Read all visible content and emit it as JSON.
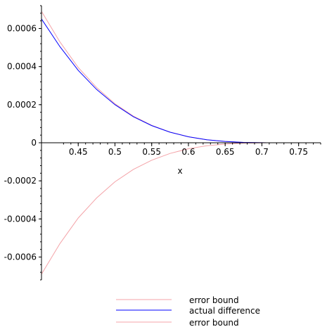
{
  "chart_data": {
    "type": "line",
    "xlabel": "x",
    "ylabel": "",
    "xlim": [
      0.4,
      0.78
    ],
    "ylim": [
      -0.00072,
      0.00072
    ],
    "x_ticks": [
      0.45,
      0.5,
      0.55,
      0.6,
      0.65,
      0.7,
      0.75
    ],
    "x_tick_labels": [
      "0.45",
      "0.5",
      "0.55",
      "0.6",
      "0.65",
      "0.7",
      "0.75"
    ],
    "y_ticks": [
      -0.0006,
      -0.0004,
      -0.0002,
      0,
      0.0002,
      0.0004,
      0.0006
    ],
    "y_tick_labels": [
      "-0.0006",
      "-0.0004",
      "-0.0002",
      "0",
      "0.0002",
      "0.0004",
      "0.0006"
    ],
    "grid": false,
    "legend_position": "bottom",
    "series": [
      {
        "name": "error bound",
        "color": "#f4a3a8",
        "x": [
          0.4,
          0.425,
          0.45,
          0.475,
          0.5,
          0.525,
          0.55,
          0.575,
          0.6,
          0.625,
          0.65,
          0.675,
          0.7,
          0.7071
        ],
        "y": [
          0.00069,
          0.00053,
          0.000395,
          0.00029,
          0.000205,
          0.00014,
          9.15e-05,
          5.6e-05,
          3.15e-05,
          1.58e-05,
          6.8e-06,
          2e-06,
          3e-07,
          0
        ]
      },
      {
        "name": "actual difference",
        "color": "#0000ff",
        "x": [
          0.4,
          0.425,
          0.45,
          0.475,
          0.5,
          0.525,
          0.55,
          0.575,
          0.6,
          0.625,
          0.65,
          0.675,
          0.7,
          0.7071
        ],
        "y": [
          0.00065,
          0.000505,
          0.00038,
          0.00028,
          0.0002,
          0.000137,
          9e-05,
          5.55e-05,
          3.15e-05,
          1.58e-05,
          6.8e-06,
          2e-06,
          3e-07,
          0
        ]
      },
      {
        "name": "error bound",
        "color": "#f4a3a8",
        "x": [
          0.4,
          0.425,
          0.45,
          0.475,
          0.5,
          0.525,
          0.55,
          0.575,
          0.6,
          0.625,
          0.65,
          0.675,
          0.7,
          0.7071
        ],
        "y": [
          -0.00069,
          -0.00053,
          -0.000395,
          -0.00029,
          -0.000205,
          -0.00014,
          -9.15e-05,
          -5.6e-05,
          -3.15e-05,
          -1.58e-05,
          -6.8e-06,
          -2e-06,
          -3e-07,
          0
        ]
      }
    ]
  }
}
